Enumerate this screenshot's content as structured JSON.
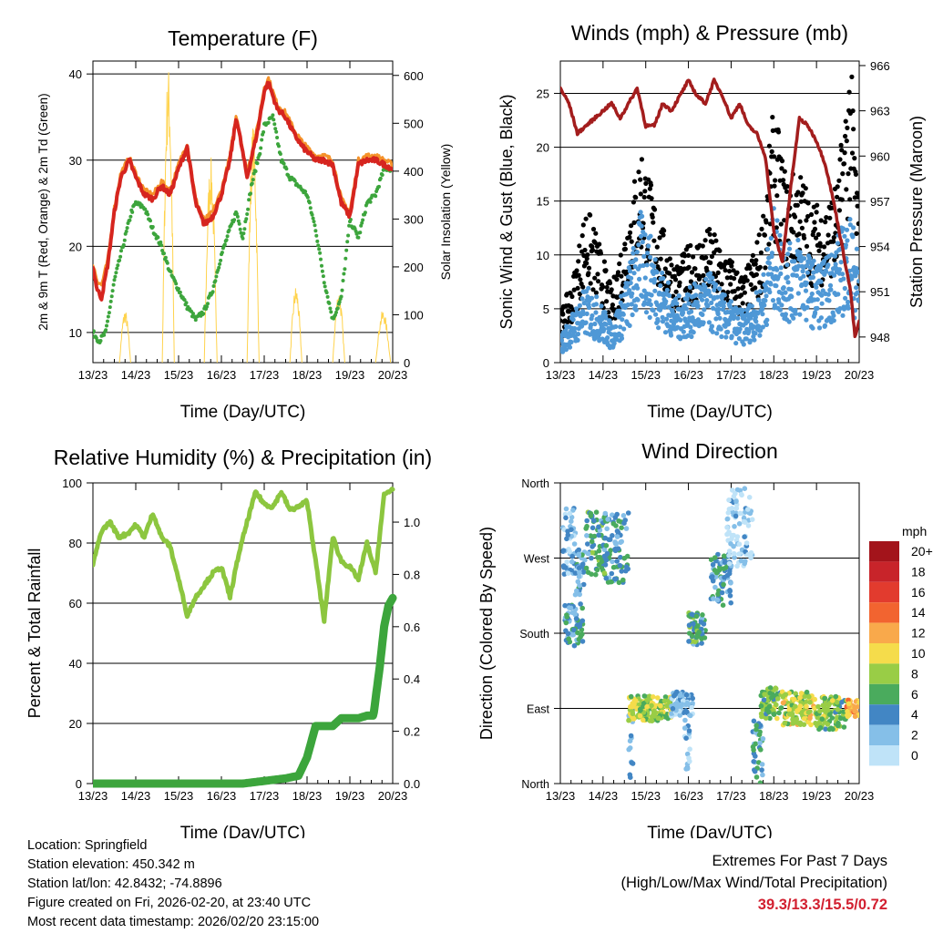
{
  "chart_data": [
    {
      "type": "line",
      "title": "Temperature (F)",
      "xlabel": "Time (Day/UTC)",
      "ylabel": "2m & 9m T (Red, Orange) & 2m Td (Green)",
      "ylabel_right": "Solar Insolation (Yellow)",
      "x_ticks": [
        "13/23",
        "14/23",
        "15/23",
        "16/23",
        "17/23",
        "18/23",
        "19/23",
        "20/23"
      ],
      "y_ticks": [
        10,
        20,
        30,
        40
      ],
      "y_ticks_right": [
        0,
        100,
        200,
        300,
        400,
        500,
        600
      ],
      "ylim": [
        6.5,
        41.5
      ],
      "ylim_right": [
        0,
        630
      ],
      "grid_y": [
        10,
        20,
        30,
        40
      ],
      "series": [
        {
          "name": "2m T",
          "color": "#d6251f",
          "x": [
            0,
            0.1,
            0.2,
            0.35,
            0.5,
            0.65,
            0.85,
            1.0,
            1.2,
            1.4,
            1.6,
            1.8,
            2.0,
            2.2,
            2.4,
            2.6,
            2.8,
            3.0,
            3.2,
            3.35,
            3.6,
            3.85,
            4.0,
            4.1,
            4.3,
            4.5,
            4.7,
            4.9,
            5.0,
            5.2,
            5.4,
            5.6,
            5.8,
            6.0,
            6.2,
            6.4,
            6.6,
            6.8,
            7.0
          ],
          "values": [
            17.5,
            15,
            14,
            18,
            24,
            28,
            30,
            28,
            26,
            25.5,
            27,
            26,
            29,
            31.5,
            25,
            22.5,
            23.5,
            26,
            30,
            35,
            28,
            33.5,
            38,
            39,
            36,
            35,
            33,
            31.5,
            31,
            30,
            30,
            29.5,
            25,
            23.5,
            29.5,
            30,
            30,
            29.5,
            29
          ]
        },
        {
          "name": "9m T",
          "color": "#f5922a",
          "x": [
            0,
            0.1,
            0.2,
            0.35,
            0.5,
            0.65,
            0.85,
            1.0,
            1.2,
            1.4,
            1.6,
            1.8,
            2.0,
            2.2,
            2.4,
            2.6,
            2.8,
            3.0,
            3.2,
            3.35,
            3.6,
            3.85,
            4.0,
            4.1,
            4.3,
            4.5,
            4.7,
            4.9,
            5.0,
            5.2,
            5.4,
            5.6,
            5.8,
            6.0,
            6.2,
            6.4,
            6.6,
            6.8,
            7.0
          ],
          "values": [
            18,
            16,
            15.5,
            18.5,
            24.5,
            28.5,
            30.3,
            28.5,
            26.5,
            26,
            27.5,
            26.5,
            29.5,
            32,
            25.5,
            23,
            24,
            26.5,
            30.5,
            35.3,
            28.5,
            34,
            38.5,
            39.5,
            36.5,
            35.5,
            33.5,
            32,
            31.5,
            30.5,
            30.5,
            30,
            25.5,
            24,
            30,
            30.5,
            30.5,
            30,
            29.5
          ]
        },
        {
          "name": "2m Td",
          "color": "#3ca53c",
          "x": [
            0,
            0.15,
            0.3,
            0.5,
            0.7,
            0.9,
            1.0,
            1.2,
            1.4,
            1.6,
            1.8,
            2.0,
            2.2,
            2.4,
            2.6,
            2.8,
            3.0,
            3.2,
            3.35,
            3.5,
            3.7,
            3.9,
            4.0,
            4.2,
            4.4,
            4.6,
            4.8,
            5.0,
            5.2,
            5.4,
            5.6,
            5.8,
            6.0,
            6.2,
            6.4,
            6.6,
            6.8,
            7.0
          ],
          "values": [
            10,
            9,
            10,
            16,
            20,
            24,
            25,
            24.5,
            22,
            20,
            17,
            15,
            13,
            11.5,
            12.5,
            15,
            19,
            22,
            24,
            21,
            27,
            31,
            34,
            35,
            30,
            28,
            27,
            26,
            22,
            16,
            11.5,
            14,
            23,
            21,
            25,
            26,
            29,
            29
          ]
        }
      ],
      "solar_insolation": {
        "name": "Solar Insolation",
        "color": "#ffd34d",
        "days": [
          {
            "start": 0.62,
            "end": 0.88,
            "peak": 110
          },
          {
            "start": 1.62,
            "end": 1.9,
            "peak": 620
          },
          {
            "start": 2.6,
            "end": 2.9,
            "peak": 430
          },
          {
            "start": 3.6,
            "end": 3.88,
            "peak": 500
          },
          {
            "start": 4.6,
            "end": 4.88,
            "peak": 160
          },
          {
            "start": 5.6,
            "end": 5.88,
            "peak": 150
          },
          {
            "start": 6.6,
            "end": 6.95,
            "peak": 110
          }
        ]
      }
    },
    {
      "type": "scatter",
      "title": "Winds (mph) & Pressure (mb)",
      "xlabel": "Time (Day/UTC)",
      "ylabel": "Sonic Wind & Gust (Blue, Black)",
      "ylabel_right": "Station Pressure (Maroon)",
      "x_ticks": [
        "13/23",
        "14/23",
        "15/23",
        "16/23",
        "17/23",
        "18/23",
        "19/23",
        "20/23"
      ],
      "y_ticks": [
        0,
        5,
        10,
        15,
        20,
        25
      ],
      "y_ticks_right": [
        948,
        951,
        954,
        957,
        960,
        963,
        966
      ],
      "ylim": [
        0,
        28
      ],
      "ylim_right": [
        946.3,
        966.3
      ],
      "grid_y": [
        5,
        10,
        15,
        20,
        25
      ],
      "series": [
        {
          "name": "Sonic Wind",
          "color": "#4f98d6",
          "x": [
            0,
            0.3,
            0.6,
            0.9,
            1.2,
            1.5,
            1.9,
            2.3,
            2.7,
            3.1,
            3.5,
            3.9,
            4.3,
            4.7,
            5.0,
            5.3,
            5.6,
            5.9,
            6.2,
            6.5,
            6.8,
            7.0
          ],
          "values": [
            2,
            4,
            6,
            5,
            3,
            6,
            12,
            8,
            5,
            6,
            7,
            5,
            4,
            6,
            12,
            9,
            10,
            8,
            8,
            10,
            12,
            8
          ]
        },
        {
          "name": "Gust",
          "color": "#000000",
          "x": [
            0,
            0.3,
            0.6,
            0.9,
            1.2,
            1.5,
            1.9,
            2.3,
            2.7,
            3.1,
            3.5,
            3.9,
            4.3,
            4.7,
            5.0,
            5.3,
            5.6,
            5.9,
            6.2,
            6.5,
            6.8,
            7.0
          ],
          "values": [
            4,
            7,
            13,
            10,
            6,
            11,
            18,
            12,
            8,
            10,
            11,
            9,
            7,
            11,
            21,
            15,
            16,
            13,
            13,
            15,
            26,
            12
          ]
        },
        {
          "name": "Station Pressure",
          "color": "#a31d1d",
          "x": [
            0,
            0.2,
            0.4,
            0.6,
            0.8,
            1.0,
            1.2,
            1.4,
            1.6,
            1.8,
            2.0,
            2.2,
            2.4,
            2.6,
            2.8,
            3.0,
            3.2,
            3.4,
            3.6,
            3.8,
            4.0,
            4.2,
            4.4,
            4.6,
            4.8,
            5.0,
            5.2,
            5.4,
            5.6,
            5.8,
            6.0,
            6.2,
            6.4,
            6.6,
            6.8,
            6.9,
            7.0
          ],
          "values": [
            964.5,
            963.5,
            961.5,
            962,
            962.5,
            963,
            963.5,
            962.5,
            963.5,
            964.5,
            962,
            962,
            963.5,
            963,
            964,
            965,
            964,
            963.5,
            965,
            964,
            962.5,
            963.5,
            962,
            961.5,
            960,
            955,
            953,
            958,
            962.5,
            962,
            961,
            959.5,
            957,
            954,
            951,
            948,
            949
          ]
        }
      ]
    },
    {
      "type": "line",
      "title": "Relative Humidity (%) & Precipitation (in)",
      "xlabel": "Time (Day/UTC)",
      "ylabel": "Percent & Total Rainfall",
      "x_ticks": [
        "13/23",
        "14/23",
        "15/23",
        "16/23",
        "17/23",
        "18/23",
        "19/23",
        "20/23"
      ],
      "y_ticks": [
        0,
        20,
        40,
        60,
        80,
        100
      ],
      "y_ticks_right": [
        0.0,
        0.2,
        0.4,
        0.6,
        0.8,
        1.0
      ],
      "ylim": [
        0,
        100
      ],
      "ylim_right": [
        0,
        1.15
      ],
      "grid_y": [
        20,
        40,
        60,
        80,
        100
      ],
      "series": [
        {
          "name": "Relative Humidity",
          "color": "#8cc63f",
          "x": [
            0,
            0.2,
            0.4,
            0.6,
            0.8,
            1.0,
            1.2,
            1.4,
            1.6,
            1.8,
            2.0,
            2.2,
            2.4,
            2.6,
            2.8,
            3.0,
            3.2,
            3.4,
            3.6,
            3.8,
            4.0,
            4.2,
            4.4,
            4.6,
            4.8,
            5.0,
            5.2,
            5.4,
            5.6,
            5.8,
            6.0,
            6.2,
            6.4,
            6.6,
            6.8,
            7.0
          ],
          "values": [
            73,
            84,
            87,
            82,
            83,
            86,
            82,
            90,
            82,
            79,
            68,
            56,
            62,
            66,
            70,
            72,
            62,
            76,
            87,
            97,
            93,
            92,
            97,
            91,
            92,
            94,
            74,
            54,
            82,
            74,
            72,
            68,
            80,
            70,
            96,
            98
          ]
        },
        {
          "name": "Total Precipitation",
          "color": "#3ca53c",
          "axis": "right",
          "x": [
            0,
            3.5,
            4.0,
            4.5,
            4.8,
            5.0,
            5.2,
            5.4,
            5.6,
            5.8,
            6.0,
            6.2,
            6.4,
            6.55,
            6.7,
            6.8,
            6.9,
            7.0
          ],
          "values": [
            0,
            0,
            0.01,
            0.02,
            0.03,
            0.1,
            0.22,
            0.22,
            0.22,
            0.25,
            0.25,
            0.25,
            0.26,
            0.26,
            0.45,
            0.6,
            0.68,
            0.71
          ]
        }
      ]
    },
    {
      "type": "scatter",
      "title": "Wind Direction",
      "xlabel": "Time (Day/UTC)",
      "ylabel": "Direction (Colored By Speed)",
      "x_ticks": [
        "13/23",
        "14/23",
        "15/23",
        "16/23",
        "17/23",
        "18/23",
        "19/23",
        "20/23"
      ],
      "y_ticks": [
        "North",
        "East",
        "South",
        "West",
        "North"
      ],
      "y_tick_values": [
        0,
        90,
        180,
        270,
        360
      ],
      "ylim": [
        0,
        360
      ],
      "grid_y": [
        90,
        180,
        270
      ],
      "clusters": [
        {
          "x_start": 0.05,
          "x_end": 0.35,
          "dir_min": 250,
          "dir_max": 330,
          "speed": 2
        },
        {
          "x_start": 0.1,
          "x_end": 0.55,
          "dir_min": 165,
          "dir_max": 215,
          "speed": 4
        },
        {
          "x_start": 0.35,
          "x_end": 0.6,
          "dir_min": 225,
          "dir_max": 280,
          "speed": 3
        },
        {
          "x_start": 0.6,
          "x_end": 1.05,
          "dir_min": 250,
          "dir_max": 325,
          "speed": 5
        },
        {
          "x_start": 1.0,
          "x_end": 1.6,
          "dir_min": 240,
          "dir_max": 325,
          "speed": 4
        },
        {
          "x_start": 1.6,
          "x_end": 1.7,
          "dir_min": 5,
          "dir_max": 90,
          "speed": 3
        },
        {
          "x_start": 1.6,
          "x_end": 2.6,
          "dir_min": 75,
          "dir_max": 105,
          "speed": 8
        },
        {
          "x_start": 2.6,
          "x_end": 3.1,
          "dir_min": 80,
          "dir_max": 110,
          "speed": 2
        },
        {
          "x_start": 2.9,
          "x_end": 3.05,
          "dir_min": 15,
          "dir_max": 100,
          "speed": 2
        },
        {
          "x_start": 3.0,
          "x_end": 3.4,
          "dir_min": 165,
          "dir_max": 205,
          "speed": 5
        },
        {
          "x_start": 3.5,
          "x_end": 4.0,
          "dir_min": 210,
          "dir_max": 275,
          "speed": 4
        },
        {
          "x_start": 3.9,
          "x_end": 4.5,
          "dir_min": 260,
          "dir_max": 355,
          "speed": 1
        },
        {
          "x_start": 4.5,
          "x_end": 4.75,
          "dir_min": 0,
          "dir_max": 75,
          "speed": 4
        },
        {
          "x_start": 4.7,
          "x_end": 5.2,
          "dir_min": 75,
          "dir_max": 115,
          "speed": 7
        },
        {
          "x_start": 5.2,
          "x_end": 6.0,
          "dir_min": 70,
          "dir_max": 110,
          "speed": 9
        },
        {
          "x_start": 6.0,
          "x_end": 6.7,
          "dir_min": 65,
          "dir_max": 105,
          "speed": 7
        },
        {
          "x_start": 6.7,
          "x_end": 7.0,
          "dir_min": 80,
          "dir_max": 100,
          "speed": 12
        }
      ],
      "colorbar": {
        "label": "mph",
        "levels": [
          "20+",
          "18",
          "16",
          "14",
          "12",
          "10",
          "8",
          "6",
          "4",
          "2",
          "0"
        ],
        "colors": [
          "#a3141b",
          "#c8242a",
          "#e23b2e",
          "#f26430",
          "#f9a94b",
          "#f5dc4b",
          "#99cd46",
          "#4aab5d",
          "#4286c4",
          "#85bfe8",
          "#bfe3f8"
        ]
      }
    }
  ],
  "footer": {
    "location": "Location: Springfield",
    "elevation": "Station elevation: 450.342 m",
    "latlon": "Station lat/lon: 42.8432; -74.8896",
    "created": "Figure created on Fri, 2026-02-20, at 23:40 UTC",
    "recent": "Most recent data timestamp: 2026/02/20 23:15:00"
  },
  "extremes": {
    "title": "Extremes For Past 7 Days",
    "subtitle": "(High/Low/Max Wind/Total Precipitation)",
    "values": "39.3/13.3/15.5/0.72",
    "value_color": "#d22030"
  }
}
